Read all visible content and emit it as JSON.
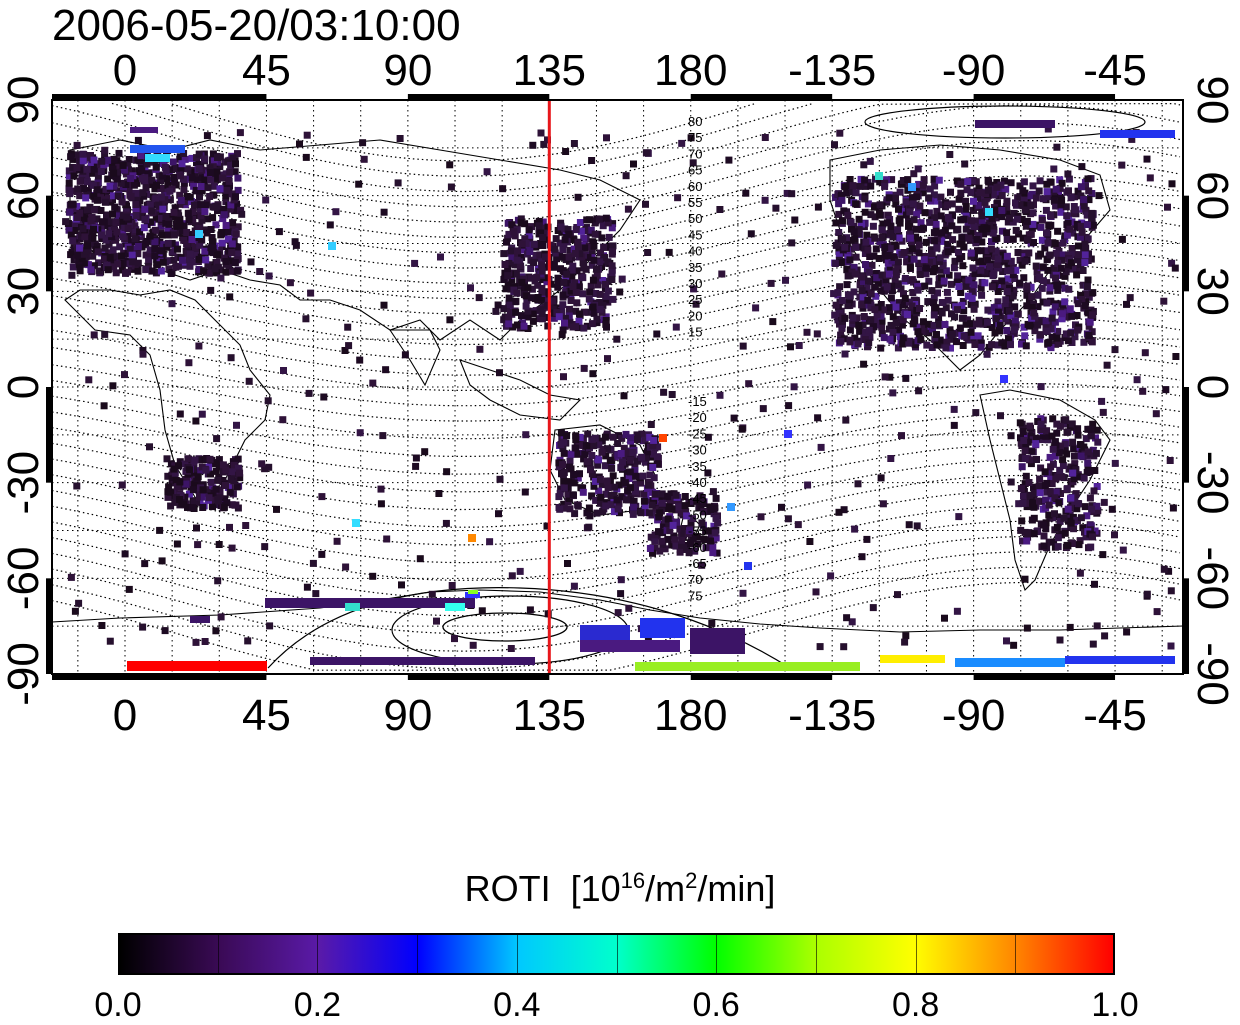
{
  "title": "2006-05-20/03:10:00",
  "map": {
    "top_lon_labels": [
      "0",
      "45",
      "90",
      "135",
      "180",
      "-135",
      "-90",
      "-45"
    ],
    "bottom_lon_labels": [
      "0",
      "45",
      "90",
      "135",
      "180",
      "-135",
      "-90",
      "-45"
    ],
    "left_lat_labels": [
      "90",
      "60",
      "30",
      "0",
      "-30",
      "-60",
      "-90"
    ],
    "right_lat_labels": [
      "90",
      "60",
      "30",
      "0",
      "-30",
      "-60",
      "-90"
    ],
    "contour_labels_north": [
      "80",
      "75",
      "70",
      "65",
      "60",
      "55",
      "50",
      "45",
      "40",
      "35",
      "30",
      "25",
      "20",
      "15"
    ],
    "contour_labels_south": [
      "-15",
      "-20",
      "-25",
      "-30",
      "-35",
      "-40",
      "-45",
      "-50",
      "-55",
      "-60",
      "-65",
      "70",
      "75"
    ],
    "terminator_lon": 135,
    "terminator_color": "#e8161b"
  },
  "colorbar": {
    "title": "ROTI",
    "unit_prefix": "[10",
    "unit_exp1": "16",
    "unit_mid": "/m",
    "unit_exp2": "2",
    "unit_suffix": "/min]",
    "min": 0.0,
    "max": 1.0,
    "tick_labels": [
      "0.0",
      "0.2",
      "0.4",
      "0.6",
      "0.8",
      "1.0"
    ],
    "colors": [
      "#000000",
      "#3a0a55",
      "#5a1aa8",
      "#0000ff",
      "#00c8ff",
      "#00ffcc",
      "#00ff00",
      "#aaff00",
      "#ffff00",
      "#ff8800",
      "#ff0000"
    ]
  }
}
